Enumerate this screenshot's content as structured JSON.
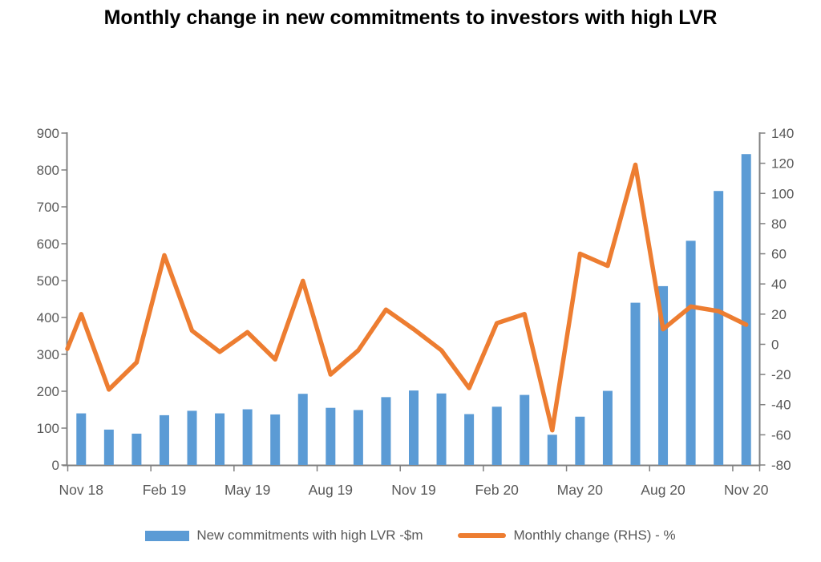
{
  "colors": {
    "bar": "#5B9BD5",
    "line": "#ED7D31",
    "axis": "#808080",
    "tick_label": "#595959",
    "title": "#000000"
  },
  "chart_data": {
    "type": "bar",
    "subtype": "bar+line combo, dual axis",
    "title": "Monthly change in new commitments to investors with high LVR",
    "xlabel": "",
    "ylabel_left": "",
    "ylabel_right": "",
    "grid": false,
    "legend_position": "bottom",
    "categories": [
      "Nov 18",
      "Dec 18",
      "Jan 19",
      "Feb 19",
      "Mar 19",
      "Apr 19",
      "May 19",
      "Jun 19",
      "Jul 19",
      "Aug 19",
      "Sep 19",
      "Oct 19",
      "Nov 19",
      "Dec 19",
      "Jan 20",
      "Feb 20",
      "Mar 20",
      "Apr 20",
      "May 20",
      "Jun 20",
      "Jul 20",
      "Aug 20",
      "Sep 20",
      "Oct 20",
      "Nov 20"
    ],
    "x_tick_labels": [
      "Nov 18",
      "Feb 19",
      "May 19",
      "Aug 19",
      "Nov 19",
      "Feb 20",
      "May 20",
      "Aug 20",
      "Nov 20"
    ],
    "x_label_every_n_months": 3,
    "series": [
      {
        "name": "New commitments with high LVR -$m",
        "type": "bar",
        "axis": "left",
        "values": [
          140,
          96,
          85,
          135,
          147,
          140,
          151,
          137,
          193,
          155,
          149,
          184,
          202,
          194,
          138,
          158,
          190,
          82,
          131,
          201,
          440,
          485,
          608,
          743,
          843
        ]
      },
      {
        "name": "Monthly change (RHS) - %",
        "type": "line",
        "axis": "right",
        "values": [
          20,
          -30,
          -12,
          59,
          9,
          -5,
          8,
          -10,
          42,
          -20,
          -4,
          23,
          10,
          -4,
          -29,
          14,
          20,
          -57,
          60,
          52,
          119,
          10,
          25,
          22,
          13
        ],
        "edge_start_value": -3
      }
    ],
    "left_axis": {
      "min": 0,
      "max": 900,
      "step": 100,
      "tick_labels": [
        "900",
        "800",
        "700",
        "600",
        "500",
        "400",
        "300",
        "200",
        "100",
        "0"
      ]
    },
    "right_axis": {
      "min": -80,
      "max": 140,
      "step": 20,
      "tick_labels": [
        "140",
        "120",
        "100",
        "80",
        "60",
        "40",
        "20",
        "0",
        "-20",
        "-40",
        "-60",
        "-80"
      ]
    }
  },
  "legend": {
    "items": [
      {
        "label": "New commitments with high LVR -$m",
        "swatch": "bar"
      },
      {
        "label": "Monthly change (RHS) - %",
        "swatch": "line"
      }
    ]
  }
}
